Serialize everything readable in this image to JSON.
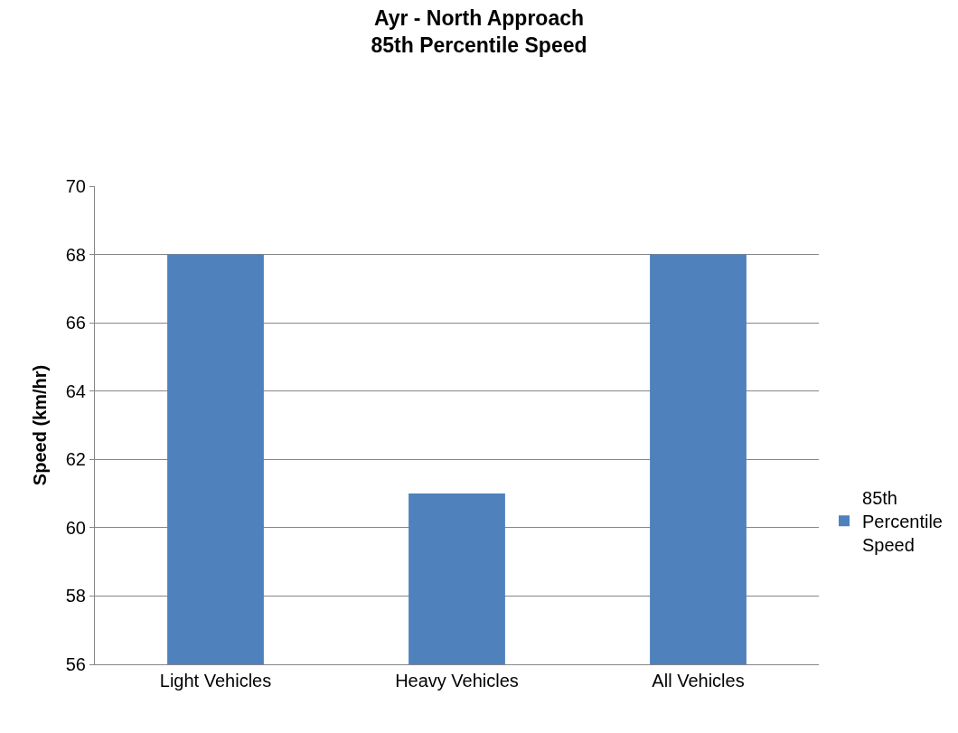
{
  "chart_data": {
    "type": "bar",
    "title": "Ayr - North Approach\n85th Percentile Speed",
    "ylabel": "Speed (km/hr)",
    "categories": [
      "Light Vehicles",
      "Heavy Vehicles",
      "All Vehicles"
    ],
    "series": [
      {
        "name": "85th Percentile Speed",
        "color": "#4f81bd",
        "values": [
          68,
          61,
          68
        ]
      }
    ],
    "ylim": [
      56,
      70
    ],
    "yticks": [
      56,
      58,
      60,
      62,
      64,
      66,
      68,
      70
    ],
    "grid": "y",
    "legend": "right"
  }
}
